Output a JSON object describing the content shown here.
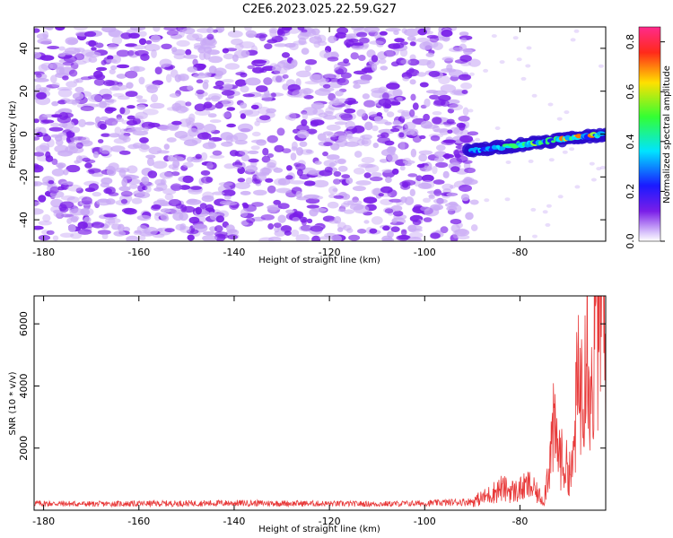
{
  "title": "C2E6.2023.025.22.59.G27",
  "chart_data": [
    {
      "type": "heatmap",
      "xlabel": "Height of straight line (km)",
      "ylabel": "Frequency (Hz)",
      "xlim": [
        -182,
        -62
      ],
      "ylim": [
        -50,
        50
      ],
      "xticks": [
        -180,
        -160,
        -140,
        -120,
        -100,
        -80
      ],
      "yticks": [
        -40,
        -20,
        0,
        20,
        40
      ],
      "colorbar": {
        "label": "Normalized spectral amplitude",
        "range": [
          0.0,
          0.86
        ],
        "ticks": [
          0.0,
          0.2,
          0.4,
          0.6,
          0.8
        ]
      },
      "signal_track": {
        "x": [
          -91,
          -62
        ],
        "y_start": -8,
        "y_end": 0
      },
      "grid": false
    },
    {
      "type": "line",
      "xlabel": "Height of straight line (km)",
      "ylabel": "SNR (10 * v/v)",
      "xlim": [
        -182,
        -62
      ],
      "ylim": [
        0,
        6900
      ],
      "xticks": [
        -180,
        -160,
        -140,
        -120,
        -100,
        -80
      ],
      "yticks": [
        2000,
        4000,
        6000
      ],
      "series_color": "#e83a3a",
      "x": [
        -182,
        -170,
        -160,
        -150,
        -140,
        -130,
        -120,
        -110,
        -100,
        -90,
        -87,
        -84,
        -81,
        -78,
        -75,
        -73,
        -71,
        -69,
        -68,
        -67,
        -66,
        -65,
        -64,
        -63,
        -62
      ],
      "values": [
        220,
        200,
        210,
        220,
        230,
        220,
        210,
        200,
        220,
        280,
        450,
        700,
        600,
        800,
        300,
        2500,
        1500,
        1200,
        3800,
        4200,
        6900,
        3500,
        6200,
        6700,
        5000
      ],
      "grid": false
    }
  ],
  "colors": {
    "heat_low": "#c9aaf5",
    "heat_mid": "#7a1ee8",
    "signal_line": "#e83a3a"
  }
}
